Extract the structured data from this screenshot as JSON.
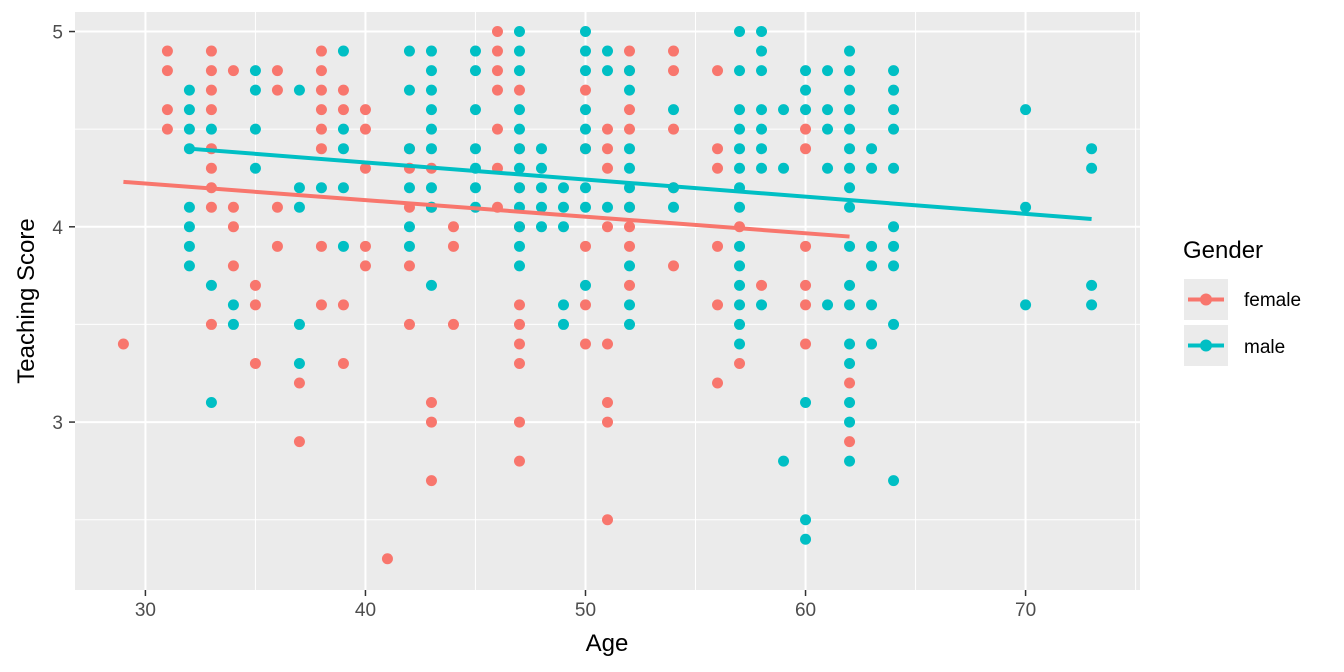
{
  "chart_data": {
    "type": "scatter",
    "xlabel": "Age",
    "ylabel": "Teaching Score",
    "xlim": [
      26.8,
      75.2
    ],
    "ylim": [
      2.14,
      5.1
    ],
    "x_ticks": [
      30,
      40,
      50,
      60,
      70
    ],
    "y_ticks": [
      3,
      4,
      5
    ],
    "grid": true,
    "legend": {
      "title": "Gender",
      "placement": "right",
      "entries": [
        "female",
        "male"
      ]
    },
    "colors": {
      "female": "#F8766D",
      "male": "#00BFC4",
      "panel": "#EBEBEB",
      "grid": "#FFFFFF"
    },
    "series": [
      {
        "name": "female",
        "color": "#F8766D",
        "trend": {
          "x": [
            29,
            62
          ],
          "y": [
            4.23,
            3.95
          ]
        },
        "points": [
          [
            29,
            3.4
          ],
          [
            31,
            4.9
          ],
          [
            31,
            4.8
          ],
          [
            31,
            4.6
          ],
          [
            31,
            4.5
          ],
          [
            33,
            4.9
          ],
          [
            33,
            4.8
          ],
          [
            33,
            4.7
          ],
          [
            33,
            4.6
          ],
          [
            33,
            4.4
          ],
          [
            33,
            4.3
          ],
          [
            33,
            4.2
          ],
          [
            33,
            4.1
          ],
          [
            33,
            3.5
          ],
          [
            34,
            4.8
          ],
          [
            34,
            4.1
          ],
          [
            34,
            4.0
          ],
          [
            34,
            3.8
          ],
          [
            35,
            3.7
          ],
          [
            35,
            3.6
          ],
          [
            35,
            3.3
          ],
          [
            36,
            4.8
          ],
          [
            36,
            4.7
          ],
          [
            36,
            4.1
          ],
          [
            36,
            3.9
          ],
          [
            37,
            3.2
          ],
          [
            37,
            2.9
          ],
          [
            38,
            4.9
          ],
          [
            38,
            4.8
          ],
          [
            38,
            4.7
          ],
          [
            38,
            4.6
          ],
          [
            38,
            4.5
          ],
          [
            38,
            4.4
          ],
          [
            38,
            3.9
          ],
          [
            38,
            3.6
          ],
          [
            39,
            4.7
          ],
          [
            39,
            4.6
          ],
          [
            39,
            3.6
          ],
          [
            39,
            3.3
          ],
          [
            40,
            4.6
          ],
          [
            40,
            4.5
          ],
          [
            40,
            4.3
          ],
          [
            40,
            3.9
          ],
          [
            40,
            3.8
          ],
          [
            41,
            2.3
          ],
          [
            42,
            4.4
          ],
          [
            42,
            4.3
          ],
          [
            42,
            4.1
          ],
          [
            42,
            3.8
          ],
          [
            42,
            3.5
          ],
          [
            43,
            4.3
          ],
          [
            43,
            4.1
          ],
          [
            43,
            3.1
          ],
          [
            43,
            3.0
          ],
          [
            43,
            2.7
          ],
          [
            44,
            4.0
          ],
          [
            44,
            3.9
          ],
          [
            44,
            3.5
          ],
          [
            46,
            5.0
          ],
          [
            46,
            4.9
          ],
          [
            46,
            4.8
          ],
          [
            46,
            4.7
          ],
          [
            46,
            4.5
          ],
          [
            46,
            4.3
          ],
          [
            46,
            4.1
          ],
          [
            47,
            4.7
          ],
          [
            47,
            4.4
          ],
          [
            47,
            4.2
          ],
          [
            47,
            4.0
          ],
          [
            47,
            3.6
          ],
          [
            47,
            3.5
          ],
          [
            47,
            3.4
          ],
          [
            47,
            3.3
          ],
          [
            47,
            3.0
          ],
          [
            47,
            2.8
          ],
          [
            50,
            4.7
          ],
          [
            50,
            4.4
          ],
          [
            50,
            3.9
          ],
          [
            50,
            3.6
          ],
          [
            50,
            3.4
          ],
          [
            51,
            4.5
          ],
          [
            51,
            4.4
          ],
          [
            51,
            4.3
          ],
          [
            51,
            4.0
          ],
          [
            51,
            3.4
          ],
          [
            51,
            3.1
          ],
          [
            51,
            3.0
          ],
          [
            51,
            2.5
          ],
          [
            52,
            4.9
          ],
          [
            52,
            4.8
          ],
          [
            52,
            4.6
          ],
          [
            52,
            4.5
          ],
          [
            52,
            4.1
          ],
          [
            52,
            4.0
          ],
          [
            52,
            3.9
          ],
          [
            52,
            3.7
          ],
          [
            54,
            4.9
          ],
          [
            54,
            4.8
          ],
          [
            54,
            4.5
          ],
          [
            54,
            4.2
          ],
          [
            54,
            3.8
          ],
          [
            56,
            4.8
          ],
          [
            56,
            4.4
          ],
          [
            56,
            4.3
          ],
          [
            56,
            3.9
          ],
          [
            56,
            3.6
          ],
          [
            56,
            3.2
          ],
          [
            57,
            4.0
          ],
          [
            57,
            3.3
          ],
          [
            58,
            3.7
          ],
          [
            60,
            4.5
          ],
          [
            60,
            4.4
          ],
          [
            60,
            3.9
          ],
          [
            60,
            3.7
          ],
          [
            60,
            3.6
          ],
          [
            60,
            3.4
          ],
          [
            62,
            3.2
          ],
          [
            62,
            2.9
          ]
        ]
      },
      {
        "name": "male",
        "color": "#00BFC4",
        "trend": {
          "x": [
            32,
            73
          ],
          "y": [
            4.4,
            4.04
          ]
        },
        "points": [
          [
            32,
            4.7
          ],
          [
            32,
            4.6
          ],
          [
            32,
            4.5
          ],
          [
            32,
            4.4
          ],
          [
            32,
            4.1
          ],
          [
            32,
            4.0
          ],
          [
            32,
            3.9
          ],
          [
            32,
            3.8
          ],
          [
            33,
            4.5
          ],
          [
            33,
            3.7
          ],
          [
            33,
            3.1
          ],
          [
            34,
            3.6
          ],
          [
            34,
            3.5
          ],
          [
            35,
            4.8
          ],
          [
            35,
            4.7
          ],
          [
            35,
            4.5
          ],
          [
            35,
            4.3
          ],
          [
            37,
            4.7
          ],
          [
            37,
            4.2
          ],
          [
            37,
            4.1
          ],
          [
            37,
            3.5
          ],
          [
            37,
            3.3
          ],
          [
            38,
            4.2
          ],
          [
            39,
            4.9
          ],
          [
            39,
            4.5
          ],
          [
            39,
            4.4
          ],
          [
            39,
            4.2
          ],
          [
            39,
            3.9
          ],
          [
            42,
            4.9
          ],
          [
            42,
            4.7
          ],
          [
            42,
            4.4
          ],
          [
            42,
            4.2
          ],
          [
            42,
            4.0
          ],
          [
            42,
            3.9
          ],
          [
            43,
            4.9
          ],
          [
            43,
            4.8
          ],
          [
            43,
            4.7
          ],
          [
            43,
            4.6
          ],
          [
            43,
            4.5
          ],
          [
            43,
            4.4
          ],
          [
            43,
            4.2
          ],
          [
            43,
            4.1
          ],
          [
            43,
            3.7
          ],
          [
            45,
            4.9
          ],
          [
            45,
            4.8
          ],
          [
            45,
            4.6
          ],
          [
            45,
            4.4
          ],
          [
            45,
            4.3
          ],
          [
            45,
            4.2
          ],
          [
            45,
            4.1
          ],
          [
            47,
            5.0
          ],
          [
            47,
            4.9
          ],
          [
            47,
            4.8
          ],
          [
            47,
            4.6
          ],
          [
            47,
            4.5
          ],
          [
            47,
            4.4
          ],
          [
            47,
            4.3
          ],
          [
            47,
            4.2
          ],
          [
            47,
            4.1
          ],
          [
            47,
            4.0
          ],
          [
            47,
            3.9
          ],
          [
            47,
            3.8
          ],
          [
            48,
            4.4
          ],
          [
            48,
            4.3
          ],
          [
            48,
            4.2
          ],
          [
            48,
            4.1
          ],
          [
            48,
            4.0
          ],
          [
            49,
            4.2
          ],
          [
            49,
            4.1
          ],
          [
            49,
            4.0
          ],
          [
            49,
            3.6
          ],
          [
            49,
            3.5
          ],
          [
            50,
            5.0
          ],
          [
            50,
            4.9
          ],
          [
            50,
            4.8
          ],
          [
            50,
            4.6
          ],
          [
            50,
            4.5
          ],
          [
            50,
            4.4
          ],
          [
            50,
            4.2
          ],
          [
            50,
            4.1
          ],
          [
            50,
            3.7
          ],
          [
            51,
            4.9
          ],
          [
            51,
            4.8
          ],
          [
            51,
            4.1
          ],
          [
            52,
            4.8
          ],
          [
            52,
            4.7
          ],
          [
            52,
            4.4
          ],
          [
            52,
            4.3
          ],
          [
            52,
            4.2
          ],
          [
            52,
            4.1
          ],
          [
            52,
            3.8
          ],
          [
            52,
            3.6
          ],
          [
            52,
            3.5
          ],
          [
            54,
            4.6
          ],
          [
            54,
            4.2
          ],
          [
            54,
            4.1
          ],
          [
            57,
            5.0
          ],
          [
            57,
            4.8
          ],
          [
            57,
            4.6
          ],
          [
            57,
            4.5
          ],
          [
            57,
            4.4
          ],
          [
            57,
            4.3
          ],
          [
            57,
            4.2
          ],
          [
            57,
            4.1
          ],
          [
            57,
            3.9
          ],
          [
            57,
            3.8
          ],
          [
            57,
            3.7
          ],
          [
            57,
            3.6
          ],
          [
            57,
            3.5
          ],
          [
            57,
            3.4
          ],
          [
            58,
            5.0
          ],
          [
            58,
            4.9
          ],
          [
            58,
            4.8
          ],
          [
            58,
            4.6
          ],
          [
            58,
            4.5
          ],
          [
            58,
            4.4
          ],
          [
            58,
            4.3
          ],
          [
            58,
            3.6
          ],
          [
            59,
            4.6
          ],
          [
            59,
            4.3
          ],
          [
            59,
            2.8
          ],
          [
            60,
            4.8
          ],
          [
            60,
            4.7
          ],
          [
            60,
            4.6
          ],
          [
            60,
            3.1
          ],
          [
            60,
            2.5
          ],
          [
            60,
            2.4
          ],
          [
            61,
            4.8
          ],
          [
            61,
            4.6
          ],
          [
            61,
            4.5
          ],
          [
            61,
            4.3
          ],
          [
            61,
            3.6
          ],
          [
            62,
            4.9
          ],
          [
            62,
            4.8
          ],
          [
            62,
            4.7
          ],
          [
            62,
            4.6
          ],
          [
            62,
            4.5
          ],
          [
            62,
            4.4
          ],
          [
            62,
            4.3
          ],
          [
            62,
            4.2
          ],
          [
            62,
            4.1
          ],
          [
            62,
            3.9
          ],
          [
            62,
            3.7
          ],
          [
            62,
            3.6
          ],
          [
            62,
            3.4
          ],
          [
            62,
            3.3
          ],
          [
            62,
            3.1
          ],
          [
            62,
            3.0
          ],
          [
            62,
            2.8
          ],
          [
            63,
            4.4
          ],
          [
            63,
            4.3
          ],
          [
            63,
            3.9
          ],
          [
            63,
            3.8
          ],
          [
            63,
            3.6
          ],
          [
            63,
            3.4
          ],
          [
            64,
            4.8
          ],
          [
            64,
            4.7
          ],
          [
            64,
            4.6
          ],
          [
            64,
            4.5
          ],
          [
            64,
            4.3
          ],
          [
            64,
            4.0
          ],
          [
            64,
            3.9
          ],
          [
            64,
            3.8
          ],
          [
            64,
            3.5
          ],
          [
            64,
            2.7
          ],
          [
            70,
            4.6
          ],
          [
            70,
            4.1
          ],
          [
            70,
            3.6
          ],
          [
            73,
            4.4
          ],
          [
            73,
            4.3
          ],
          [
            73,
            3.7
          ],
          [
            73,
            3.6
          ]
        ]
      }
    ]
  }
}
